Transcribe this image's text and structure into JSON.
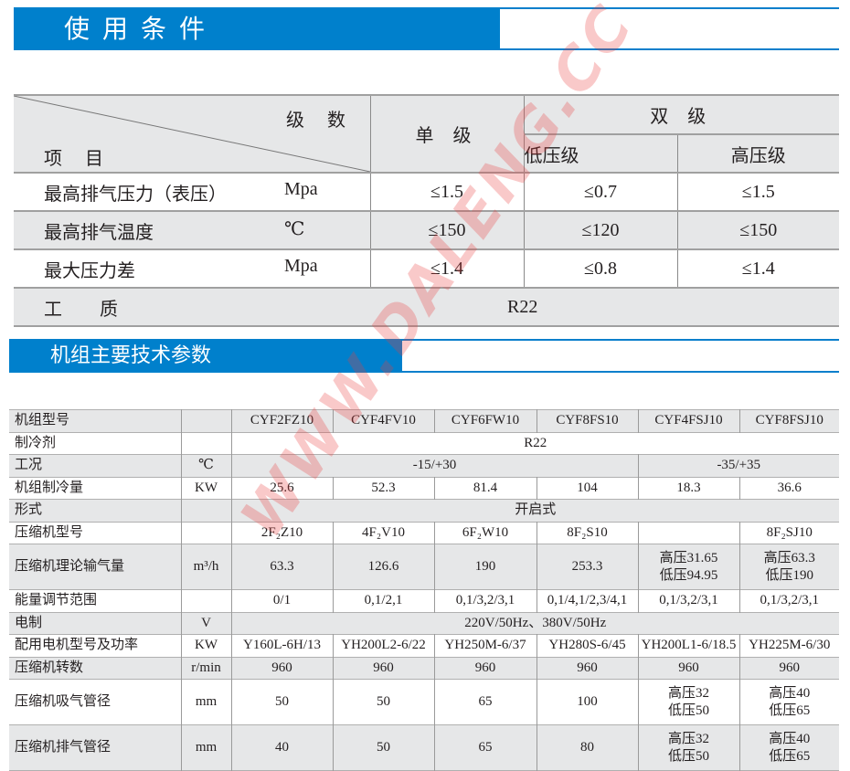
{
  "section1": {
    "title": "使用条件"
  },
  "conditions": {
    "header": {
      "stage_count": "级 数",
      "item": "项 目",
      "single": "单 级",
      "double": "双 级",
      "low": "低压级",
      "high": "高压级"
    },
    "rows": [
      {
        "label": "最高排气压力（表压）",
        "unit": "Mpa",
        "single": "≤1.5",
        "low": "≤0.7",
        "high": "≤1.5"
      },
      {
        "label": "最高排气温度",
        "unit": "℃",
        "single": "≤150",
        "low": "≤120",
        "high": "≤150"
      },
      {
        "label": "最大压力差",
        "unit": "Mpa",
        "single": "≤1.4",
        "low": "≤0.8",
        "high": "≤1.4"
      }
    ],
    "medium": {
      "label": "工 质",
      "value": "R22"
    }
  },
  "section2": {
    "title": "机组主要技术参数"
  },
  "specs": {
    "rows": [
      {
        "label": "机组型号",
        "unit": "",
        "cells": [
          {
            "t": "CYF2FZ10"
          },
          {
            "t": "CYF4FV10"
          },
          {
            "t": "CYF6FW10"
          },
          {
            "t": "CYF8FS10"
          },
          {
            "t": "CYF4FSJ10"
          },
          {
            "t": "CYF8FSJ10"
          }
        ]
      },
      {
        "label": "制冷剂",
        "unit": "",
        "cells": [
          {
            "t": "R22",
            "span": 6
          }
        ]
      },
      {
        "label": "工况",
        "unit": "℃",
        "cells": [
          {
            "t": "-15/+30",
            "span": 4
          },
          {
            "t": "-35/+35",
            "span": 2
          }
        ]
      },
      {
        "label": "机组制冷量",
        "unit": "KW",
        "cells": [
          {
            "t": "25.6"
          },
          {
            "t": "52.3"
          },
          {
            "t": "81.4"
          },
          {
            "t": "104"
          },
          {
            "t": "18.3"
          },
          {
            "t": "36.6"
          }
        ]
      },
      {
        "label": "形式",
        "unit": "",
        "cells": [
          {
            "t": "开启式",
            "span": 6
          }
        ]
      },
      {
        "label": "压缩机型号",
        "unit": "",
        "cells": [
          {
            "t": "2F₂Z10"
          },
          {
            "t": "4F₂V10"
          },
          {
            "t": "6F₂W10"
          },
          {
            "t": "8F₂S10"
          },
          {
            "t": ""
          },
          {
            "t": "8F₂SJ10"
          }
        ]
      },
      {
        "label": "压缩机理论输气量",
        "unit": "m³/h",
        "tall": true,
        "cells": [
          {
            "t": "63.3"
          },
          {
            "t": "126.6"
          },
          {
            "t": "190"
          },
          {
            "t": "253.3"
          },
          {
            "t": "高压31.65\n低压94.95"
          },
          {
            "t": "高压63.3\n低压190"
          }
        ]
      },
      {
        "label": "能量调节范围",
        "unit": "",
        "cells": [
          {
            "t": "0/1"
          },
          {
            "t": "0,1/2,1"
          },
          {
            "t": "0,1/3,2/3,1"
          },
          {
            "t": "0,1/4,1/2,3/4,1"
          },
          {
            "t": "0,1/3,2/3,1"
          },
          {
            "t": "0,1/3,2/3,1"
          }
        ]
      },
      {
        "label": "电制",
        "unit": "V",
        "cells": [
          {
            "t": "220V/50Hz、380V/50Hz",
            "span": 6
          }
        ]
      },
      {
        "label": "配用电机型号及功率",
        "unit": "KW",
        "cells": [
          {
            "t": "Y160L-6H/13"
          },
          {
            "t": "YH200L2-6/22"
          },
          {
            "t": "YH250M-6/37"
          },
          {
            "t": "YH280S-6/45"
          },
          {
            "t": "YH200L1-6/18.5"
          },
          {
            "t": "YH225M-6/30"
          }
        ]
      },
      {
        "label": "压缩机转数",
        "unit": "r/min",
        "cells": [
          {
            "t": "960"
          },
          {
            "t": "960"
          },
          {
            "t": "960"
          },
          {
            "t": "960"
          },
          {
            "t": "960"
          },
          {
            "t": "960"
          }
        ]
      },
      {
        "label": "压缩机吸气管径",
        "unit": "mm",
        "tall": true,
        "cells": [
          {
            "t": "50"
          },
          {
            "t": "50"
          },
          {
            "t": "65"
          },
          {
            "t": "100"
          },
          {
            "t": "高压32\n低压50"
          },
          {
            "t": "高压40\n低压65"
          }
        ]
      },
      {
        "label": "压缩机排气管径",
        "unit": "mm",
        "tall": true,
        "cells": [
          {
            "t": "40"
          },
          {
            "t": "50"
          },
          {
            "t": "65"
          },
          {
            "t": "80"
          },
          {
            "t": "高压32\n低压50"
          },
          {
            "t": "高压40\n低压65"
          }
        ]
      }
    ]
  },
  "watermark": "WWW.DALENG.CC",
  "colors": {
    "accent": "#0080cc",
    "row_gray": "#e6e7e8",
    "watermark": "#eb3c3c"
  }
}
